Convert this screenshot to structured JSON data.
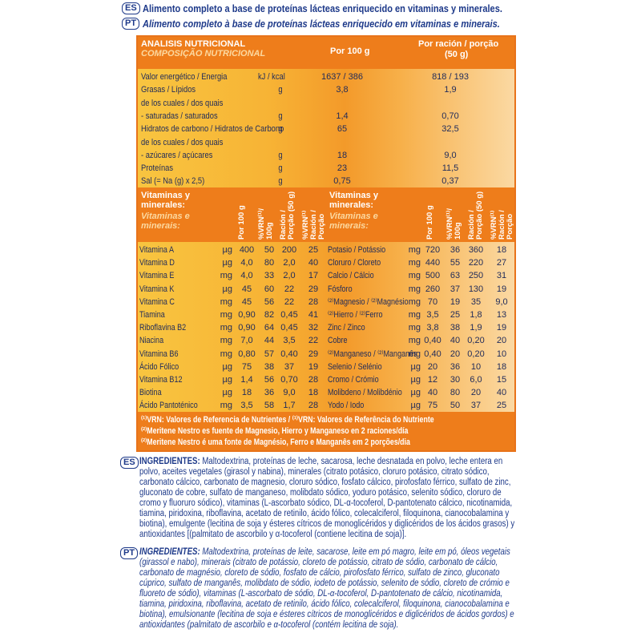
{
  "header": {
    "es_badge": "ES",
    "es_text": "Alimento completo a base de proteínas lácteas enriquecido en vitaminas y minerales.",
    "pt_badge": "PT",
    "pt_text": "Alimento completo à base de proteínas lácteas enriquecido em vitaminas e minerais."
  },
  "nutrition_table": {
    "title_es": "ANALISIS NUTRICIONAL",
    "title_pt": "COMPOSIÇÃO NUTRICIONAL",
    "col_per100": "Por 100 g",
    "col_portion": "Por ración / porção",
    "col_portion_size": "(50 g)",
    "rows": [
      [
        "Valor energético / Energia",
        "kJ / kcal",
        "1637 / 386",
        "818 / 193"
      ],
      [
        "Grasas / Lípidos",
        "g",
        "3,8",
        "1,9"
      ],
      [
        "de los cuales / dos quais"
      ],
      [
        "- saturadas / saturados",
        "g",
        "1,4",
        "0,70"
      ],
      [
        "Hidratos de carbono / Hidratos de Carbono",
        "g",
        "65",
        "32,5"
      ],
      [
        "de los cuales / dos quais"
      ],
      [
        "- azúcares / açúcares",
        "g",
        "18",
        "9,0"
      ],
      [
        "Proteínas",
        "g",
        "23",
        "11,5"
      ],
      [
        "Sal (= Na (g) x 2,5)",
        "g",
        "0,75",
        "0,37"
      ]
    ]
  },
  "vitamins_table": {
    "heading_es": "Vitaminas y minerales:",
    "heading_pt": "Vitaminas e minerais:",
    "columns": [
      "Por 100 g",
      "%VRN⁽¹⁾/ 100g",
      "Ración / Porção (50 g)",
      "%VRN⁽¹⁾ Ración / Porção"
    ],
    "left_rows": [
      [
        "Vitamina A",
        "µg",
        "400",
        "50",
        "200",
        "25"
      ],
      [
        "Vitamina D",
        "µg",
        "4,0",
        "80",
        "2,0",
        "40"
      ],
      [
        "Vitamina E",
        "mg",
        "4,0",
        "33",
        "2,0",
        "17"
      ],
      [
        "Vitamina K",
        "µg",
        "45",
        "60",
        "22",
        "29"
      ],
      [
        "Vitamina C",
        "mg",
        "45",
        "56",
        "22",
        "28"
      ],
      [
        "Tiamina",
        "mg",
        "0,90",
        "82",
        "0,45",
        "41"
      ],
      [
        "Riboflavina B2",
        "mg",
        "0,90",
        "64",
        "0,45",
        "32"
      ],
      [
        "Niacina",
        "mg",
        "7,0",
        "44",
        "3,5",
        "22"
      ],
      [
        "Vitamina B6",
        "mg",
        "0,80",
        "57",
        "0,40",
        "29"
      ],
      [
        "Ácido Fólico",
        "µg",
        "75",
        "38",
        "37",
        "19"
      ],
      [
        "Vitamina B12",
        "µg",
        "1,4",
        "56",
        "0,70",
        "28"
      ],
      [
        "Biotina",
        "µg",
        "18",
        "36",
        "9,0",
        "18"
      ],
      [
        "Ácido Pantoténico",
        "mg",
        "3,5",
        "58",
        "1,7",
        "28"
      ]
    ],
    "right_rows": [
      [
        "Potasio / Potássio",
        "mg",
        "720",
        "36",
        "360",
        "18"
      ],
      [
        "Cloruro / Cloreto",
        "mg",
        "440",
        "55",
        "220",
        "27"
      ],
      [
        "Calcio / Cálcio",
        "mg",
        "500",
        "63",
        "250",
        "31"
      ],
      [
        "Fósforo",
        "mg",
        "260",
        "37",
        "130",
        "19"
      ],
      [
        "⁽²⁾Magnesio / ⁽²⁾Magnésio",
        "mg",
        "70",
        "19",
        "35",
        "9,0"
      ],
      [
        "⁽²⁾Hierro / ⁽²⁾Ferro",
        "mg",
        "3,5",
        "25",
        "1,8",
        "13"
      ],
      [
        "Zinc / Zinco",
        "mg",
        "3,8",
        "38",
        "1,9",
        "19"
      ],
      [
        "Cobre",
        "mg",
        "0,40",
        "40",
        "0,20",
        "20"
      ],
      [
        "⁽²⁾Manganeso / ⁽²⁾Manganês",
        "mg",
        "0,40",
        "20",
        "0,20",
        "10"
      ],
      [
        "Selenio / Selénio",
        "µg",
        "20",
        "36",
        "10",
        "18"
      ],
      [
        "Cromo / Crómio",
        "µg",
        "12",
        "30",
        "6,0",
        "15"
      ],
      [
        "Molibdeno / Molibdénio",
        "µg",
        "40",
        "80",
        "20",
        "40"
      ],
      [
        "Yodo / Iodo",
        "µg",
        "75",
        "50",
        "37",
        "25"
      ]
    ]
  },
  "footnotes": [
    "⁽¹⁾VRN: Valores de Referencia de Nutrientes / ⁽¹⁾VRN: Valores de Referência do Nutriente",
    "⁽²⁾Meritene Nestro es fuente de Magnesio, Hierro y Manganeso en 2 raciones/día",
    "⁽²⁾Meritene Nestro é uma fonte de Magnésio, Ferro e Manganês em 2 porções/dia"
  ],
  "ingredients": {
    "es": {
      "badge": "ES",
      "label": "INGREDIENTES:",
      "text": "Maltodextrina, proteínas de leche, sacarosa, leche desnatada en polvo, leche entera en polvo, aceites vegetales (girasol y nabina), minerales (citrato potásico, cloruro potásico, citrato sódico, carbonato cálcico, carbonato de magnesio, cloruro sódico, fosfato cálcico, pirofosfato férrico, sulfato de zinc, gluconato de cobre, sulfato de manganeso, molibdato sódico, yoduro potásico, selenito sódico, cloruro de cromo y fluoruro sódico), vitaminas (L-ascorbato sódico, DL-α-tocoferol, D-pantotenato cálcico, nicotinamida, tiamina, piridoxina, riboflavina, acetato de retinilo, ácido fólico, colecalciferol, filoquinona, cianocobalamina y biotina), emulgente (lecitina de soja y ésteres cítricos de monoglicéridos y diglicéridos de los ácidos grasos) y antioxidantes [(palmitato de ascorbilo y α-tocoferol (contiene lecitina de soja)]."
    },
    "pt": {
      "badge": "PT",
      "label": "INGREDIENTES:",
      "text": "Maltodextrina, proteínas de leite, sacarose, leite em pó magro, leite em pó, óleos vegetais (girassol e nabo), minerais (citrato de potássio, cloreto de potássio, citrato de sódio, carbonato de cálcio, carbonato de magnésio, cloreto de sódio, fosfato de cálcio, pirofosfato férrico, sulfato de zinco, gluconato cúprico, sulfato de manganês, molibdato de sódio, iodeto de potássio, selenito de sódio, cloreto de crómio e fluoreto de sódio), vitaminas (L-ascorbato de sódio, DL-α-tocoferol, D-pantotenato de cálcio, nicotinamida, tiamina, piridoxina, riboflavina, acetato de retinilo, ácido fólico, colecalciferol, filoquinona, cianocobalamina e biotina), emulsionante (lecitina de soja e ésteres cítricos de monoglicéridos e diglicéridos de ácidos gordos) e antioxidantes (palmitato de ascorbilo e α-tocoferol (contém lecitina de soja)."
    }
  }
}
